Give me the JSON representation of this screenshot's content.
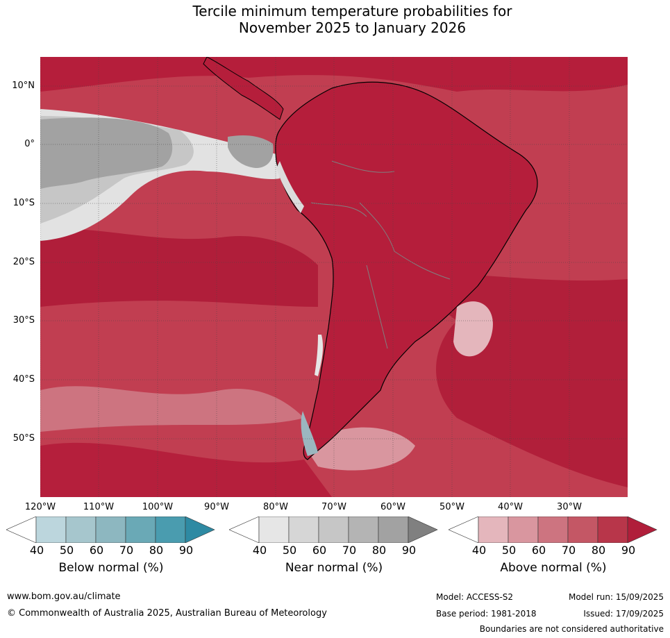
{
  "title": {
    "line1": "Tercile minimum temperature probabilities for",
    "line2": "November 2025 to January 2026"
  },
  "map": {
    "lat_labels": [
      "10°N",
      "0°",
      "10°S",
      "20°S",
      "30°S",
      "40°S",
      "50°S"
    ],
    "lon_labels": [
      "120°W",
      "110°W",
      "100°W",
      "90°W",
      "80°W",
      "70°W",
      "60°W",
      "50°W",
      "40°W",
      "30°W"
    ]
  },
  "legends": [
    {
      "title": "Below normal (%)",
      "ticks": [
        "40",
        "50",
        "60",
        "70",
        "80",
        "90"
      ],
      "colors": [
        "#ffffff",
        "#bcd6dd",
        "#a6c6cd",
        "#8db7c0",
        "#6aa9b6",
        "#4a9caf",
        "#2e8aa3"
      ]
    },
    {
      "title": "Near normal (%)",
      "ticks": [
        "40",
        "50",
        "60",
        "70",
        "80",
        "90"
      ],
      "colors": [
        "#ffffff",
        "#e6e6e6",
        "#d6d6d6",
        "#c6c6c6",
        "#b4b4b4",
        "#a2a2a2",
        "#808080"
      ]
    },
    {
      "title": "Above normal (%)",
      "ticks": [
        "40",
        "50",
        "60",
        "70",
        "80",
        "90"
      ],
      "colors": [
        "#ffffff",
        "#e4b6bc",
        "#d9969f",
        "#cd7480",
        "#c45765",
        "#b8364a",
        "#b01e3a"
      ]
    }
  ],
  "footer": {
    "website": "www.bom.gov.au/climate",
    "copyright": "© Commonwealth of Australia 2025, Australian Bureau of Meteorology",
    "model": "Model: ACCESS-S2",
    "model_run": "Model run: 15/09/2025",
    "base_period": "Base period: 1981-2018",
    "issued": "Issued: 17/09/2025",
    "disclaimer": "Boundaries are not considered authoritative"
  }
}
